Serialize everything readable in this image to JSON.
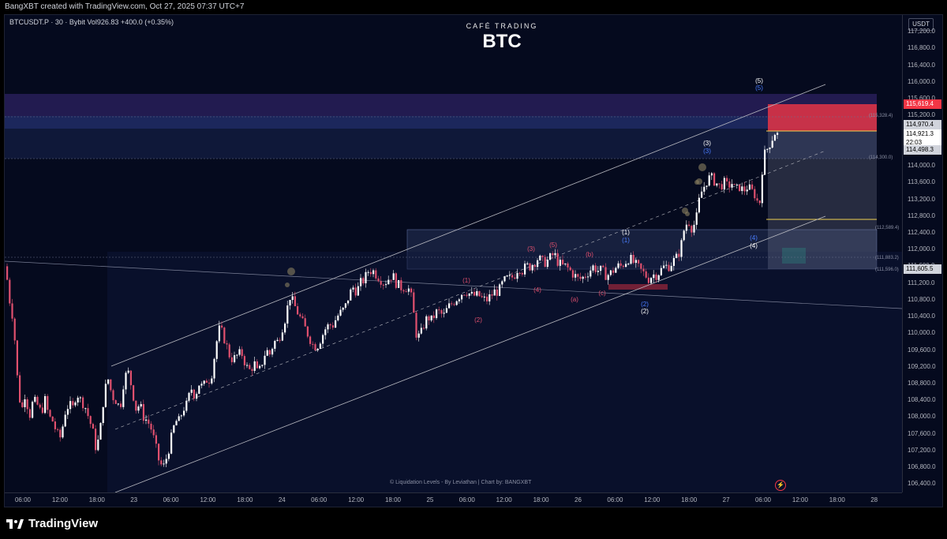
{
  "header": {
    "credit": "BangXBT created with TradingView.com, Oct 27, 2025 07:37 UTC+7"
  },
  "legend": {
    "symbol": "BTCUSDT.P · 30 · Bybit",
    "volume": "Vol926.83",
    "change": "+400.0 (+0.35%)"
  },
  "title": {
    "brand": "CAFÉ TRADING",
    "main": "BTC"
  },
  "watermark_credit": "© Liquidation Levels - By Leviathan | Chart by: BANGXBT",
  "price_axis": {
    "currency": "USDT",
    "ticks": [
      "117,200.0",
      "116,800.0",
      "116,400.0",
      "116,000.0",
      "115,600.0",
      "115,200.0",
      "114,800.0",
      "114,400.0",
      "114,000.0",
      "113,600.0",
      "113,200.0",
      "112,800.0",
      "112,400.0",
      "112,000.0",
      "111,600.0",
      "111,200.0",
      "110,800.0",
      "110,400.0",
      "110,000.0",
      "109,600.0",
      "109,200.0",
      "108,800.0",
      "108,400.0",
      "108,000.0",
      "107,600.0",
      "107,200.0",
      "106,800.0",
      "106,400.0"
    ],
    "labels": {
      "red_level": "115,619.4",
      "level_a": "114,970.4",
      "last_price": "114,921.3",
      "countdown": "22:03",
      "level_b": "114,498.3",
      "level_c": "111,605.5"
    },
    "colors": {
      "red": "#f23645",
      "white": "#ffffff",
      "gray": "#d1d4dc"
    }
  },
  "time_axis": {
    "ticks": [
      "06:00",
      "12:00",
      "18:00",
      "23",
      "06:00",
      "12:00",
      "18:00",
      "24",
      "06:00",
      "12:00",
      "18:00",
      "25",
      "06:00",
      "12:00",
      "18:00",
      "26",
      "06:00",
      "12:00",
      "18:00",
      "27",
      "06:00",
      "12:00",
      "18:00",
      "28"
    ]
  },
  "level_tags": {
    "l1": "(115,328.4)",
    "l2": "(114,300.0)",
    "l3": "(112,589.4)",
    "l4": "(111,883.2)",
    "l5": "(111,596.0)"
  },
  "wave_labels": {
    "w1": "(1)",
    "w2": "(2)",
    "w3": "(3)",
    "w4": "(4)",
    "w5": "(5)",
    "wa": "(a)",
    "wb": "(b)",
    "wc": "(c)",
    "W1": "(1)",
    "W1b": "(1)",
    "W2": "(2)",
    "W2b": "(2)",
    "W3": "(3)",
    "W3b": "(3)",
    "W4": "(4)",
    "W4b": "(4)",
    "W5": "(5)",
    "W5b": "(5)"
  },
  "footer": {
    "brand": "TradingView"
  },
  "chart_data": {
    "type": "candlestick",
    "symbol": "BTCUSDT.P",
    "interval": "30",
    "exchange": "Bybit",
    "ylim": [
      106200,
      117600
    ],
    "last_price": 114921.3,
    "close_path": [
      [
        0,
        111600
      ],
      [
        5,
        110800
      ],
      [
        10,
        110300
      ],
      [
        15,
        108900
      ],
      [
        20,
        108100
      ],
      [
        25,
        108600
      ],
      [
        30,
        108000
      ],
      [
        35,
        108400
      ],
      [
        40,
        108300
      ],
      [
        45,
        108100
      ],
      [
        50,
        108400
      ],
      [
        55,
        108000
      ],
      [
        60,
        107900
      ],
      [
        65,
        107600
      ],
      [
        70,
        107500
      ],
      [
        75,
        108100
      ],
      [
        80,
        108300
      ],
      [
        85,
        108200
      ],
      [
        90,
        108600
      ],
      [
        95,
        108400
      ],
      [
        100,
        108300
      ],
      [
        105,
        108000
      ],
      [
        110,
        107700
      ],
      [
        115,
        107200
      ],
      [
        120,
        107700
      ],
      [
        125,
        108600
      ],
      [
        130,
        108900
      ],
      [
        135,
        108500
      ],
      [
        140,
        108400
      ],
      [
        145,
        108200
      ],
      [
        150,
        108900
      ],
      [
        155,
        109100
      ],
      [
        160,
        108700
      ],
      [
        165,
        108200
      ],
      [
        170,
        108300
      ],
      [
        175,
        108000
      ],
      [
        180,
        107900
      ],
      [
        185,
        107700
      ],
      [
        190,
        107300
      ],
      [
        195,
        106900
      ],
      [
        200,
        106800
      ],
      [
        205,
        107100
      ],
      [
        210,
        107500
      ],
      [
        215,
        107900
      ],
      [
        220,
        107900
      ],
      [
        225,
        108200
      ],
      [
        230,
        108300
      ],
      [
        235,
        108700
      ],
      [
        240,
        108500
      ],
      [
        245,
        108800
      ],
      [
        250,
        108700
      ],
      [
        255,
        108900
      ],
      [
        260,
        108900
      ],
      [
        265,
        109500
      ],
      [
        270,
        110100
      ],
      [
        275,
        110000
      ],
      [
        280,
        109700
      ],
      [
        285,
        109400
      ],
      [
        290,
        109400
      ],
      [
        295,
        109500
      ],
      [
        300,
        109500
      ],
      [
        305,
        109200
      ],
      [
        310,
        109100
      ],
      [
        315,
        109300
      ],
      [
        320,
        109000
      ],
      [
        325,
        109300
      ],
      [
        330,
        109600
      ],
      [
        335,
        109500
      ],
      [
        340,
        109800
      ],
      [
        345,
        109800
      ],
      [
        350,
        110100
      ],
      [
        355,
        110400
      ],
      [
        360,
        110900
      ],
      [
        365,
        110700
      ],
      [
        370,
        110500
      ],
      [
        375,
        110300
      ],
      [
        380,
        110100
      ],
      [
        385,
        109900
      ],
      [
        390,
        109700
      ],
      [
        395,
        109700
      ],
      [
        400,
        109900
      ],
      [
        405,
        110100
      ],
      [
        410,
        110200
      ],
      [
        415,
        110200
      ],
      [
        420,
        110400
      ],
      [
        425,
        110500
      ],
      [
        430,
        110600
      ],
      [
        435,
        110900
      ],
      [
        440,
        111100
      ],
      [
        445,
        111000
      ],
      [
        450,
        111200
      ],
      [
        455,
        111300
      ],
      [
        460,
        111500
      ],
      [
        465,
        111500
      ],
      [
        470,
        111400
      ],
      [
        475,
        111300
      ],
      [
        480,
        111200
      ],
      [
        485,
        111300
      ],
      [
        490,
        111400
      ],
      [
        495,
        111200
      ],
      [
        500,
        111100
      ],
      [
        505,
        111100
      ],
      [
        510,
        111100
      ],
      [
        515,
        110800
      ],
      [
        520,
        110000
      ],
      [
        525,
        109900
      ],
      [
        530,
        110200
      ],
      [
        535,
        110400
      ],
      [
        540,
        110300
      ],
      [
        545,
        110500
      ],
      [
        550,
        110500
      ],
      [
        555,
        110400
      ],
      [
        560,
        110600
      ],
      [
        565,
        110700
      ],
      [
        570,
        110800
      ],
      [
        575,
        110900
      ],
      [
        580,
        111000
      ],
      [
        585,
        111000
      ],
      [
        590,
        110900
      ],
      [
        595,
        110900
      ],
      [
        600,
        110900
      ],
      [
        605,
        110800
      ],
      [
        610,
        110800
      ],
      [
        615,
        110900
      ],
      [
        620,
        111000
      ],
      [
        625,
        111000
      ],
      [
        630,
        111200
      ],
      [
        635,
        111300
      ],
      [
        640,
        111300
      ],
      [
        645,
        111400
      ],
      [
        650,
        111600
      ],
      [
        655,
        111500
      ],
      [
        660,
        111600
      ],
      [
        665,
        111600
      ],
      [
        670,
        111700
      ],
      [
        675,
        111800
      ],
      [
        680,
        111700
      ],
      [
        685,
        111700
      ],
      [
        690,
        111800
      ],
      [
        695,
        111900
      ],
      [
        700,
        111700
      ],
      [
        705,
        111600
      ],
      [
        710,
        111600
      ],
      [
        715,
        111500
      ],
      [
        720,
        111400
      ],
      [
        725,
        111300
      ],
      [
        730,
        111300
      ],
      [
        735,
        111400
      ],
      [
        740,
        111500
      ],
      [
        745,
        111600
      ],
      [
        750,
        111500
      ],
      [
        755,
        111500
      ],
      [
        760,
        111400
      ],
      [
        765,
        111400
      ],
      [
        770,
        111500
      ],
      [
        775,
        111600
      ],
      [
        780,
        111600
      ],
      [
        785,
        111700
      ],
      [
        790,
        111800
      ],
      [
        795,
        111700
      ],
      [
        800,
        111600
      ],
      [
        805,
        111500
      ],
      [
        810,
        111400
      ],
      [
        815,
        111300
      ],
      [
        820,
        111400
      ],
      [
        825,
        111400
      ],
      [
        830,
        111500
      ],
      [
        835,
        111600
      ],
      [
        840,
        111600
      ],
      [
        845,
        111700
      ],
      [
        850,
        111800
      ],
      [
        855,
        112000
      ],
      [
        860,
        112500
      ],
      [
        865,
        112700
      ],
      [
        870,
        112500
      ],
      [
        875,
        112700
      ],
      [
        880,
        113300
      ],
      [
        885,
        113500
      ],
      [
        890,
        113700
      ],
      [
        895,
        113700
      ],
      [
        900,
        113600
      ],
      [
        905,
        113500
      ],
      [
        910,
        113600
      ],
      [
        915,
        113500
      ],
      [
        920,
        113600
      ],
      [
        925,
        113400
      ],
      [
        930,
        113500
      ],
      [
        935,
        113400
      ],
      [
        940,
        113500
      ],
      [
        945,
        113400
      ],
      [
        950,
        113300
      ],
      [
        955,
        113000
      ],
      [
        960,
        114200
      ],
      [
        965,
        114400
      ],
      [
        970,
        114600
      ],
      [
        975,
        114800
      ],
      [
        980,
        114700
      ],
      [
        985,
        114900
      ]
    ]
  }
}
